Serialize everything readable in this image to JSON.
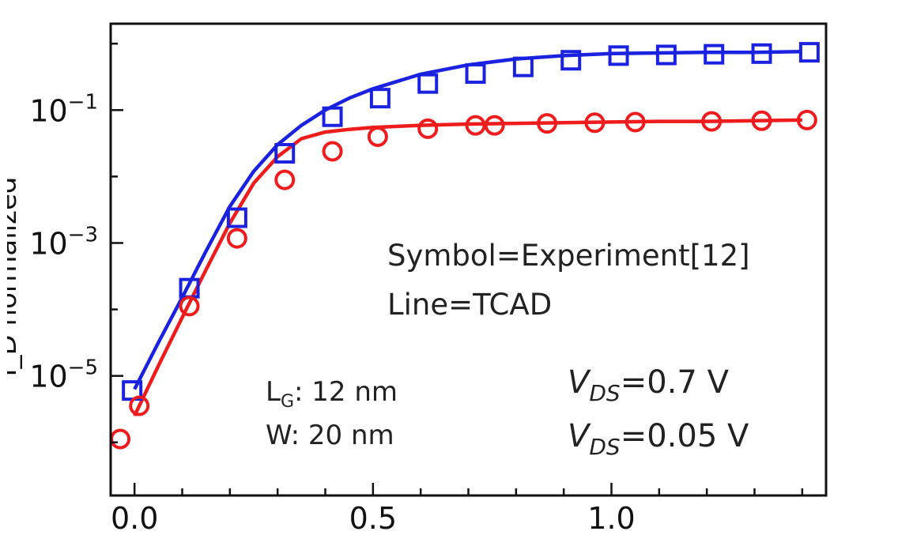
{
  "chart_data": {
    "type": "scatter",
    "title": "",
    "xlabel": "",
    "ylabel_visible_fragment": "I_D normalized",
    "xlim": [
      -0.05,
      1.45
    ],
    "ylim_log10": [
      -6.8,
      0.3
    ],
    "y_scale": "log",
    "x_ticks": [
      0.0,
      0.5,
      1.0
    ],
    "x_tick_labels": [
      "0.0",
      "0.5",
      "1.0"
    ],
    "y_ticks_log10": [
      -1,
      -3,
      -5
    ],
    "y_tick_label_base": "10",
    "y_tick_label_exponents": [
      "−1",
      "−3",
      "−5"
    ],
    "grid": false,
    "series": [
      {
        "name": "Experiment, VDS=0.7 V",
        "kind": "symbol",
        "marker": "square",
        "color": "#1a22e0",
        "x": [
          -0.005,
          0.115,
          0.215,
          0.315,
          0.415,
          0.515,
          0.615,
          0.715,
          0.815,
          0.915,
          1.015,
          1.115,
          1.215,
          1.315,
          1.415
        ],
        "y_log10": [
          -5.22,
          -3.68,
          -2.62,
          -1.65,
          -1.1,
          -0.82,
          -0.6,
          -0.45,
          -0.35,
          -0.25,
          -0.18,
          -0.17,
          -0.16,
          -0.15,
          -0.13
        ]
      },
      {
        "name": "Experiment, VDS=0.05 V",
        "kind": "symbol",
        "marker": "circle",
        "color": "#ee1c1c",
        "x": [
          -0.03,
          0.01,
          0.115,
          0.215,
          0.315,
          0.415,
          0.51,
          0.615,
          0.715,
          0.755,
          0.865,
          0.965,
          1.05,
          1.21,
          1.315,
          1.41
        ],
        "y_log10": [
          -5.95,
          -5.45,
          -3.95,
          -2.93,
          -2.05,
          -1.62,
          -1.4,
          -1.28,
          -1.23,
          -1.23,
          -1.2,
          -1.19,
          -1.18,
          -1.17,
          -1.16,
          -1.15
        ]
      },
      {
        "name": "TCAD, VDS=0.7 V",
        "kind": "line",
        "color": "#1a22e0",
        "x": [
          0.0,
          0.05,
          0.1,
          0.15,
          0.2,
          0.25,
          0.3,
          0.35,
          0.4,
          0.45,
          0.5,
          0.6,
          0.7,
          0.8,
          0.9,
          1.0,
          1.1,
          1.2,
          1.3,
          1.4
        ],
        "y_log10": [
          -5.2,
          -4.5,
          -3.82,
          -3.12,
          -2.45,
          -1.92,
          -1.52,
          -1.23,
          -1.0,
          -0.82,
          -0.68,
          -0.46,
          -0.32,
          -0.23,
          -0.18,
          -0.15,
          -0.14,
          -0.13,
          -0.13,
          -0.12
        ]
      },
      {
        "name": "TCAD, VDS=0.05 V",
        "kind": "line",
        "color": "#ee1c1c",
        "x": [
          0.0,
          0.05,
          0.1,
          0.15,
          0.2,
          0.25,
          0.3,
          0.35,
          0.4,
          0.45,
          0.5,
          0.6,
          0.7,
          0.8,
          0.9,
          1.0,
          1.1,
          1.2,
          1.3,
          1.4
        ],
        "y_log10": [
          -5.6,
          -4.85,
          -4.12,
          -3.4,
          -2.7,
          -2.1,
          -1.7,
          -1.43,
          -1.33,
          -1.29,
          -1.26,
          -1.23,
          -1.21,
          -1.2,
          -1.19,
          -1.18,
          -1.17,
          -1.17,
          -1.16,
          -1.15
        ]
      }
    ],
    "annotations": {
      "symbol_line": "Symbol=Experiment[12]",
      "line_line": "Line=TCAD",
      "lg_prefix": "L",
      "lg_sub": "G",
      "lg_rest": ": 12 nm",
      "w_text": "W: 20 nm",
      "vds_high_prefix": "V",
      "vds_high_sub": "DS",
      "vds_high_rest": "=0.7 V",
      "vds_low_prefix": "V",
      "vds_low_sub": "DS",
      "vds_low_rest": "=0.05 V"
    }
  }
}
